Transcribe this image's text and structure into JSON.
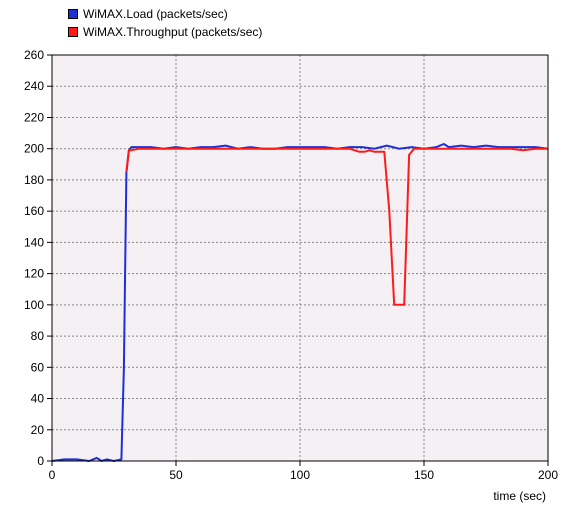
{
  "chart_data": {
    "type": "line",
    "xlabel": "time (sec)",
    "ylabel": "",
    "xlim": [
      0,
      200
    ],
    "ylim": [
      0,
      260
    ],
    "x_ticks": [
      0,
      50,
      100,
      150,
      200
    ],
    "y_ticks": [
      0,
      20,
      40,
      60,
      80,
      100,
      120,
      140,
      160,
      180,
      200,
      220,
      240,
      260
    ],
    "grid": true,
    "legend_position": "top-left",
    "background": "#f4f0f4",
    "series": [
      {
        "name": "WiMAX.Load (packets/sec)",
        "color": "#1f2fd8",
        "x": [
          0,
          5,
          10,
          15,
          18,
          20,
          22,
          25,
          28,
          29,
          30,
          31,
          32,
          35,
          40,
          45,
          50,
          55,
          60,
          65,
          70,
          75,
          80,
          85,
          90,
          95,
          100,
          105,
          110,
          115,
          120,
          125,
          130,
          135,
          140,
          145,
          150,
          155,
          158,
          160,
          165,
          170,
          175,
          180,
          185,
          190,
          195,
          200
        ],
        "y": [
          0,
          1,
          1,
          0,
          2,
          0,
          1,
          0,
          1,
          60,
          185,
          199,
          201,
          201,
          201,
          200,
          201,
          200,
          201,
          201,
          202,
          200,
          201,
          200,
          200,
          201,
          201,
          201,
          201,
          200,
          201,
          201,
          200,
          202,
          200,
          201,
          200,
          201,
          203,
          201,
          202,
          201,
          202,
          201,
          201,
          201,
          201,
          200
        ]
      },
      {
        "name": "WiMAX.Throughput (packets/sec)",
        "color": "#ff1a1a",
        "x": [
          30,
          31,
          32,
          35,
          40,
          45,
          50,
          55,
          60,
          65,
          70,
          75,
          80,
          85,
          90,
          95,
          100,
          105,
          110,
          115,
          120,
          122,
          124,
          126,
          128,
          130,
          132,
          134,
          136,
          138,
          140,
          142,
          144,
          146,
          150,
          155,
          160,
          165,
          170,
          175,
          180,
          185,
          190,
          195,
          200
        ],
        "y": [
          185,
          199,
          199,
          200,
          200,
          200,
          200,
          200,
          200,
          200,
          200,
          200,
          200,
          200,
          200,
          200,
          200,
          200,
          200,
          200,
          200,
          199,
          198,
          198,
          199,
          198,
          198,
          198,
          160,
          100,
          100,
          100,
          196,
          200,
          200,
          200,
          200,
          200,
          200,
          200,
          200,
          200,
          199,
          200,
          200
        ]
      }
    ]
  }
}
